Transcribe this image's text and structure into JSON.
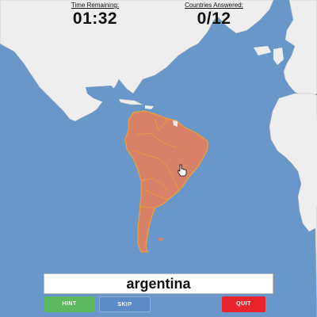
{
  "timer": {
    "label": "Time Remaining:",
    "value": "01:32"
  },
  "score": {
    "label": "Countries Answered:",
    "value": "0/12"
  },
  "answer_input": {
    "value": "argentina"
  },
  "buttons": {
    "hint": {
      "label": "HINT",
      "color": "#5cb85c"
    },
    "skip": {
      "label": "SKIP",
      "color": "#5b8cc8"
    },
    "quit": {
      "label": "QUIT",
      "color": "#e8242c"
    }
  },
  "colors": {
    "ocean": "#6a97c9",
    "land": "#eeeeee",
    "highlight_region": "#d9826a",
    "highlight_border": "#f0a030"
  },
  "icons": {
    "cursor": "hand-cursor-icon"
  }
}
